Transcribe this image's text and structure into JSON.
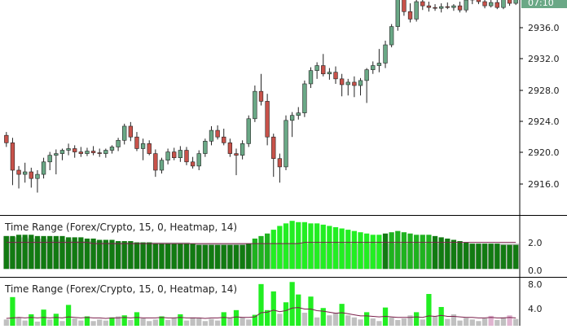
{
  "colors": {
    "bull": "#6aa886",
    "bear": "#c8524a",
    "wick": "#222222",
    "grid_frame": "#000000",
    "price_tag": "#6aa886",
    "heat_dark": "#127a12",
    "heat_mid": "#1fb21f",
    "heat_bright": "#22ee22",
    "heat_grey": "#c0c0c0",
    "heat_pink": "#e0b4d0",
    "avg_line": "#7a1f4a"
  },
  "price_panel": {
    "current_price_tag": "07:10",
    "y_ticks": [
      "2936.0",
      "2932.0",
      "2928.0",
      "2924.0",
      "2920.0",
      "2916.0"
    ]
  },
  "indicator_1": {
    "label": "Time Range (Forex/Crypto, 15, 0, Heatmap, 14)",
    "y_ticks": [
      "2.0",
      "0.0"
    ]
  },
  "indicator_2": {
    "label": "Time Range (Forex/Crypto, 15, 0, Heatmap, 14)",
    "y_ticks": [
      "8.0",
      "4.0"
    ]
  },
  "chart_data": [
    {
      "type": "candlestick",
      "ylim": [
        2912.8,
        2938.5
      ],
      "candles": [
        [
          2922.2,
          2922.6,
          2920.8,
          2921.3
        ],
        [
          2921.3,
          2921.9,
          2916.2,
          2918.0
        ],
        [
          2918.0,
          2918.5,
          2915.8,
          2917.5
        ],
        [
          2917.5,
          2918.9,
          2916.5,
          2917.8
        ],
        [
          2917.8,
          2918.3,
          2915.9,
          2917.0
        ],
        [
          2917.0,
          2918.0,
          2915.3,
          2917.5
        ],
        [
          2917.5,
          2919.5,
          2917.0,
          2919.0
        ],
        [
          2919.0,
          2920.2,
          2918.0,
          2919.8
        ],
        [
          2919.8,
          2920.5,
          2917.5,
          2920.0
        ],
        [
          2920.0,
          2920.6,
          2919.2,
          2920.4
        ],
        [
          2920.4,
          2921.2,
          2919.8,
          2920.6
        ],
        [
          2920.6,
          2921.0,
          2919.5,
          2920.2
        ],
        [
          2920.2,
          2920.8,
          2919.6,
          2920.0
        ],
        [
          2920.0,
          2920.7,
          2919.7,
          2920.3
        ],
        [
          2920.3,
          2920.9,
          2919.8,
          2920.1
        ],
        [
          2920.1,
          2920.6,
          2919.6,
          2920.0
        ],
        [
          2920.0,
          2920.6,
          2919.5,
          2920.4
        ],
        [
          2920.4,
          2921.0,
          2920.0,
          2920.8
        ],
        [
          2920.8,
          2921.9,
          2920.3,
          2921.6
        ],
        [
          2921.6,
          2923.6,
          2921.1,
          2923.3
        ],
        [
          2923.3,
          2923.8,
          2921.5,
          2922.0
        ],
        [
          2922.0,
          2922.6,
          2920.3,
          2920.6
        ],
        [
          2920.6,
          2921.8,
          2919.2,
          2921.2
        ],
        [
          2921.2,
          2921.6,
          2919.8,
          2920.0
        ],
        [
          2920.0,
          2920.5,
          2917.2,
          2918.0
        ],
        [
          2918.0,
          2919.5,
          2917.6,
          2919.2
        ],
        [
          2919.2,
          2920.6,
          2918.7,
          2920.2
        ],
        [
          2920.2,
          2920.7,
          2919.2,
          2919.5
        ],
        [
          2919.5,
          2920.9,
          2919.0,
          2920.4
        ],
        [
          2920.4,
          2920.8,
          2918.6,
          2919.0
        ],
        [
          2919.0,
          2919.6,
          2918.2,
          2918.5
        ],
        [
          2918.5,
          2920.4,
          2918.0,
          2920.0
        ],
        [
          2920.0,
          2921.8,
          2919.6,
          2921.5
        ],
        [
          2921.5,
          2923.3,
          2921.0,
          2922.8
        ],
        [
          2922.8,
          2923.4,
          2921.7,
          2922.0
        ],
        [
          2922.0,
          2923.0,
          2921.0,
          2921.3
        ],
        [
          2921.3,
          2921.8,
          2919.6,
          2920.0
        ],
        [
          2920.0,
          2920.6,
          2917.4,
          2919.8
        ],
        [
          2919.8,
          2921.6,
          2919.3,
          2921.2
        ],
        [
          2921.2,
          2924.6,
          2920.8,
          2924.2
        ],
        [
          2924.2,
          2928.2,
          2923.8,
          2927.5
        ],
        [
          2927.5,
          2929.6,
          2925.8,
          2926.3
        ],
        [
          2926.3,
          2927.2,
          2921.0,
          2922.0
        ],
        [
          2922.0,
          2922.4,
          2917.2,
          2919.4
        ],
        [
          2919.4,
          2920.0,
          2916.5,
          2918.4
        ],
        [
          2918.4,
          2924.6,
          2918.0,
          2924.0
        ],
        [
          2924.0,
          2925.0,
          2922.0,
          2924.6
        ],
        [
          2924.6,
          2925.6,
          2924.1,
          2924.9
        ],
        [
          2924.9,
          2928.8,
          2924.4,
          2928.4
        ],
        [
          2928.4,
          2930.4,
          2927.9,
          2930.0
        ],
        [
          2930.0,
          2931.0,
          2929.0,
          2930.6
        ],
        [
          2930.6,
          2932.0,
          2929.3,
          2929.6
        ],
        [
          2929.6,
          2930.3,
          2928.9,
          2929.8
        ],
        [
          2929.8,
          2930.5,
          2928.4,
          2929.0
        ],
        [
          2929.0,
          2929.6,
          2926.9,
          2928.3
        ],
        [
          2928.3,
          2929.0,
          2927.0,
          2928.6
        ],
        [
          2928.6,
          2929.3,
          2926.8,
          2928.2
        ],
        [
          2928.2,
          2929.1,
          2927.0,
          2928.8
        ],
        [
          2928.8,
          2930.3,
          2926.1,
          2930.1
        ],
        [
          2930.1,
          2931.1,
          2929.6,
          2930.6
        ],
        [
          2930.6,
          2932.6,
          2929.8,
          2930.9
        ],
        [
          2930.9,
          2933.6,
          2930.3,
          2933.1
        ],
        [
          2933.1,
          2935.6,
          2932.8,
          2935.3
        ],
        [
          2935.3,
          2939.3,
          2934.8,
          2938.8
        ],
        [
          2938.8,
          2939.3,
          2936.6,
          2937.1
        ],
        [
          2937.1,
          2938.1,
          2935.8,
          2936.2
        ],
        [
          2936.2,
          2938.6,
          2935.9,
          2938.3
        ],
        [
          2938.3,
          2938.9,
          2937.3,
          2937.8
        ],
        [
          2937.8,
          2938.3,
          2937.1,
          2937.6
        ],
        [
          2937.6,
          2938.0,
          2937.2,
          2937.5
        ],
        [
          2937.5,
          2938.1,
          2937.0,
          2937.7
        ],
        [
          2937.7,
          2938.2,
          2937.4,
          2937.6
        ],
        [
          2937.6,
          2938.0,
          2937.2,
          2937.8
        ],
        [
          2937.8,
          2938.3,
          2937.0,
          2937.3
        ],
        [
          2937.3,
          2938.9,
          2937.0,
          2938.5
        ],
        [
          2938.5,
          2939.1,
          2938.0,
          2938.6
        ],
        [
          2938.6,
          2939.0,
          2938.0,
          2938.3
        ],
        [
          2938.3,
          2938.8,
          2937.5,
          2937.8
        ],
        [
          2937.8,
          2938.6,
          2937.6,
          2938.2
        ],
        [
          2938.2,
          2938.7,
          2937.4,
          2937.6
        ],
        [
          2937.6,
          2938.9,
          2937.4,
          2938.6
        ],
        [
          2938.6,
          2939.1,
          2937.8,
          2938.1
        ],
        [
          2938.1,
          2939.2,
          2937.9,
          2938.9
        ]
      ]
    },
    {
      "type": "bar",
      "ylim": [
        -0.5,
        4.2
      ],
      "values": [
        2.6,
        2.6,
        2.7,
        2.7,
        2.7,
        2.6,
        2.6,
        2.6,
        2.6,
        2.6,
        2.5,
        2.5,
        2.5,
        2.4,
        2.4,
        2.3,
        2.3,
        2.3,
        2.2,
        2.2,
        2.2,
        2.1,
        2.1,
        2.1,
        2.0,
        2.0,
        2.0,
        2.0,
        2.0,
        2.0,
        2.0,
        1.9,
        1.9,
        1.9,
        1.9,
        1.9,
        1.9,
        1.9,
        1.9,
        2.0,
        2.4,
        2.6,
        2.8,
        3.1,
        3.4,
        3.6,
        3.8,
        3.7,
        3.7,
        3.6,
        3.6,
        3.5,
        3.4,
        3.3,
        3.2,
        3.1,
        3.0,
        2.9,
        2.8,
        2.7,
        2.7,
        2.8,
        2.9,
        3.0,
        2.9,
        2.8,
        2.7,
        2.7,
        2.7,
        2.6,
        2.5,
        2.4,
        2.3,
        2.2,
        2.1,
        2.0,
        2.0,
        2.0,
        2.0,
        2.0,
        1.9,
        1.9,
        1.9
      ],
      "colors": [
        "heat_dark",
        "heat_dark",
        "heat_dark",
        "heat_dark",
        "heat_dark",
        "heat_dark",
        "heat_dark",
        "heat_dark",
        "heat_dark",
        "heat_dark",
        "heat_dark",
        "heat_dark",
        "heat_dark",
        "heat_dark",
        "heat_dark",
        "heat_dark",
        "heat_dark",
        "heat_dark",
        "heat_dark",
        "heat_dark",
        "heat_dark",
        "heat_dark",
        "heat_dark",
        "heat_dark",
        "heat_dark",
        "heat_dark",
        "heat_dark",
        "heat_dark",
        "heat_dark",
        "heat_dark",
        "heat_dark",
        "heat_dark",
        "heat_dark",
        "heat_dark",
        "heat_dark",
        "heat_dark",
        "heat_dark",
        "heat_dark",
        "heat_dark",
        "heat_dark",
        "heat_mid",
        "heat_mid",
        "heat_mid",
        "heat_bright",
        "heat_bright",
        "heat_bright",
        "heat_bright",
        "heat_bright",
        "heat_bright",
        "heat_bright",
        "heat_bright",
        "heat_bright",
        "heat_bright",
        "heat_bright",
        "heat_bright",
        "heat_bright",
        "heat_bright",
        "heat_bright",
        "heat_bright",
        "heat_bright",
        "heat_bright",
        "heat_dark",
        "heat_mid",
        "heat_mid",
        "heat_mid",
        "heat_mid",
        "heat_mid",
        "heat_mid",
        "heat_mid",
        "heat_dark",
        "heat_dark",
        "heat_dark",
        "heat_dark",
        "heat_dark",
        "heat_dark",
        "heat_dark",
        "heat_dark",
        "heat_dark",
        "heat_dark",
        "heat_dark",
        "heat_dark",
        "heat_dark",
        "heat_dark"
      ],
      "background_values": [
        2.6,
        2.5,
        2.5,
        2.5,
        2.4,
        2.4,
        2.4,
        2.3,
        2.3,
        2.3,
        2.3,
        2.2,
        2.2,
        2.2,
        2.2,
        2.2,
        2.1,
        2.1,
        2.1,
        2.1,
        2.1,
        2.1,
        2.1,
        2.1,
        2.1,
        2.1,
        2.1,
        2.1,
        2.1,
        2.1,
        2.0,
        2.0,
        2.0,
        2.0,
        2.0,
        2.0,
        2.0,
        2.0,
        2.0,
        2.0,
        2.0,
        2.0,
        2.0,
        2.0,
        2.0,
        2.0,
        2.0,
        2.0,
        2.0,
        2.0,
        2.0,
        2.0,
        2.0,
        2.0,
        2.0,
        2.0,
        2.0,
        2.0,
        2.0,
        2.0,
        2.0,
        2.0,
        2.0,
        2.0,
        2.0,
        2.0,
        2.0,
        2.0,
        2.0,
        2.0,
        2.0,
        2.0,
        2.0,
        2.0,
        2.0,
        2.0,
        2.0,
        2.0,
        2.0,
        2.0,
        2.0,
        2.0,
        2.0
      ],
      "line_values": [
        2.1,
        2.1,
        2.1,
        2.1,
        2.1,
        2.1,
        2.1,
        2.1,
        2.1,
        2.1,
        2.1,
        2.1,
        2.1,
        2.1,
        2.0,
        2.0,
        2.0,
        2.0,
        2.0,
        2.0,
        2.0,
        2.0,
        2.0,
        2.0,
        2.0,
        2.0,
        2.0,
        2.0,
        2.0,
        2.0,
        2.0,
        2.0,
        2.0,
        2.0,
        2.0,
        2.0,
        2.0,
        2.0,
        2.0,
        2.0,
        2.0,
        2.0,
        2.0,
        2.0,
        2.0,
        2.0,
        2.0,
        2.0,
        2.1,
        2.1,
        2.1,
        2.1,
        2.1,
        2.1,
        2.1,
        2.1,
        2.1,
        2.1,
        2.1,
        2.1,
        2.1,
        2.1,
        2.1,
        2.1,
        2.1,
        2.1,
        2.1,
        2.1,
        2.1,
        2.1,
        2.1,
        2.1,
        2.1,
        2.1,
        2.1,
        2.1,
        2.1,
        2.1,
        2.1,
        2.1,
        2.1,
        2.1,
        2.1
      ]
    },
    {
      "type": "bar",
      "ylim": [
        0,
        8.6
      ],
      "values": [
        1.2,
        5.5,
        1.5,
        1.0,
        2.2,
        0.8,
        3.1,
        1.2,
        2.3,
        0.9,
        4.0,
        1.4,
        1.0,
        1.8,
        0.9,
        1.2,
        1.0,
        1.6,
        1.8,
        2.0,
        1.1,
        2.6,
        1.4,
        0.9,
        1.2,
        1.8,
        1.1,
        1.5,
        2.2,
        1.0,
        1.6,
        1.4,
        0.9,
        1.3,
        1.0,
        2.6,
        1.5,
        3.0,
        1.6,
        1.2,
        2.1,
        8.0,
        3.0,
        6.6,
        2.3,
        4.5,
        8.4,
        6.0,
        2.5,
        5.6,
        1.6,
        3.4,
        2.0,
        2.4,
        4.2,
        2.0,
        1.6,
        1.2,
        2.6,
        1.4,
        0.9,
        3.5,
        1.6,
        1.1,
        1.4,
        2.0,
        2.6,
        1.2,
        6.1,
        1.8,
        3.6,
        1.3,
        2.2,
        1.0,
        1.5,
        1.2,
        0.9,
        1.4,
        1.9,
        1.1,
        1.6,
        2.0,
        1.3
      ],
      "colors": [
        "heat_grey",
        "heat_bright",
        "heat_grey",
        "heat_grey",
        "heat_bright",
        "heat_grey",
        "heat_bright",
        "heat_grey",
        "heat_bright",
        "heat_grey",
        "heat_bright",
        "heat_grey",
        "heat_grey",
        "heat_bright",
        "heat_grey",
        "heat_grey",
        "heat_grey",
        "heat_bright",
        "heat_grey",
        "heat_bright",
        "heat_grey",
        "heat_bright",
        "heat_grey",
        "heat_grey",
        "heat_grey",
        "heat_bright",
        "heat_grey",
        "heat_grey",
        "heat_bright",
        "heat_grey",
        "heat_grey",
        "heat_grey",
        "heat_grey",
        "heat_grey",
        "heat_grey",
        "heat_bright",
        "heat_grey",
        "heat_bright",
        "heat_grey",
        "heat_grey",
        "heat_bright",
        "heat_bright",
        "heat_bright",
        "heat_bright",
        "heat_grey",
        "heat_bright",
        "heat_bright",
        "heat_bright",
        "heat_grey",
        "heat_bright",
        "heat_grey",
        "heat_bright",
        "heat_grey",
        "heat_grey",
        "heat_bright",
        "heat_grey",
        "heat_grey",
        "heat_grey",
        "heat_bright",
        "heat_grey",
        "heat_grey",
        "heat_bright",
        "heat_grey",
        "heat_grey",
        "heat_grey",
        "heat_grey",
        "heat_bright",
        "heat_grey",
        "heat_bright",
        "heat_grey",
        "heat_bright",
        "heat_grey",
        "heat_grey",
        "heat_grey",
        "heat_grey",
        "heat_grey",
        "heat_grey",
        "heat_grey",
        "heat_pink",
        "heat_grey",
        "heat_grey",
        "heat_pink",
        "heat_grey"
      ],
      "line_values": [
        1.4,
        1.5,
        1.6,
        1.5,
        1.6,
        1.5,
        1.6,
        1.5,
        1.6,
        1.5,
        1.7,
        1.6,
        1.5,
        1.6,
        1.5,
        1.5,
        1.4,
        1.5,
        1.5,
        1.6,
        1.5,
        1.6,
        1.5,
        1.5,
        1.5,
        1.6,
        1.5,
        1.5,
        1.6,
        1.5,
        1.5,
        1.5,
        1.4,
        1.5,
        1.5,
        1.6,
        1.5,
        1.7,
        1.6,
        1.6,
        1.7,
        2.5,
        2.6,
        3.0,
        2.7,
        2.9,
        3.4,
        3.5,
        3.2,
        3.2,
        2.9,
        2.8,
        2.6,
        2.4,
        2.5,
        2.3,
        2.1,
        1.9,
        1.9,
        1.8,
        1.7,
        1.8,
        1.7,
        1.6,
        1.6,
        1.6,
        1.7,
        1.6,
        1.9,
        1.8,
        2.0,
        1.8,
        1.8,
        1.7,
        1.6,
        1.6,
        1.5,
        1.5,
        1.6,
        1.5,
        1.5,
        1.6,
        1.5
      ]
    }
  ]
}
